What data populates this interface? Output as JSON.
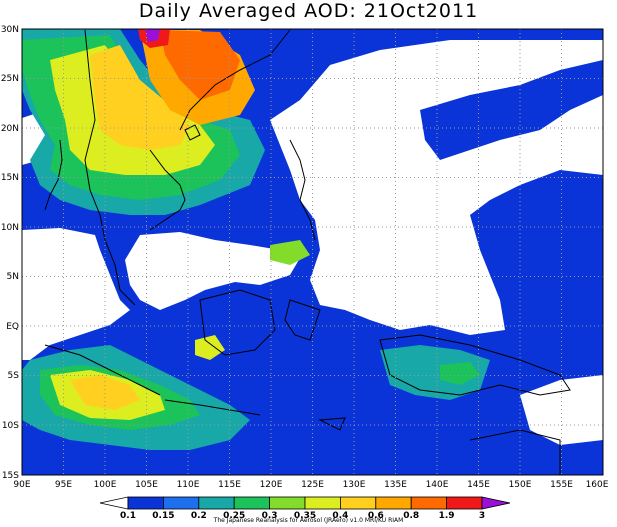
{
  "title": "Daily Averaged AOD: 21Oct2011",
  "credit": "The Japanese Reanalysis for Aerosol (JRAero) v1.0 MRI/KU RIAM",
  "map": {
    "lon_ticks": [
      "90E",
      "95E",
      "100E",
      "105E",
      "110E",
      "115E",
      "120E",
      "125E",
      "130E",
      "135E",
      "140E",
      "145E",
      "150E",
      "155E",
      "160E"
    ],
    "lat_ticks": [
      "30N",
      "25N",
      "20N",
      "15N",
      "10N",
      "5N",
      "EQ",
      "5S",
      "10S",
      "15S"
    ],
    "lon_range": [
      90,
      160
    ],
    "lat_range": [
      -15,
      30
    ],
    "grid": "dotted"
  },
  "colorbar": {
    "labels": [
      "0.1",
      "0.15",
      "0.2",
      "0.25",
      "0.3",
      "0.35",
      "0.4",
      "0.6",
      "0.8",
      "1.9",
      "3"
    ],
    "colors": [
      "#ffffff",
      "#0a34d8",
      "#1e6ef0",
      "#18a8a8",
      "#1cc25a",
      "#84dc2a",
      "#dcee20",
      "#ffd020",
      "#ffa800",
      "#ff6a00",
      "#f01818",
      "#9a10d8"
    ]
  }
}
